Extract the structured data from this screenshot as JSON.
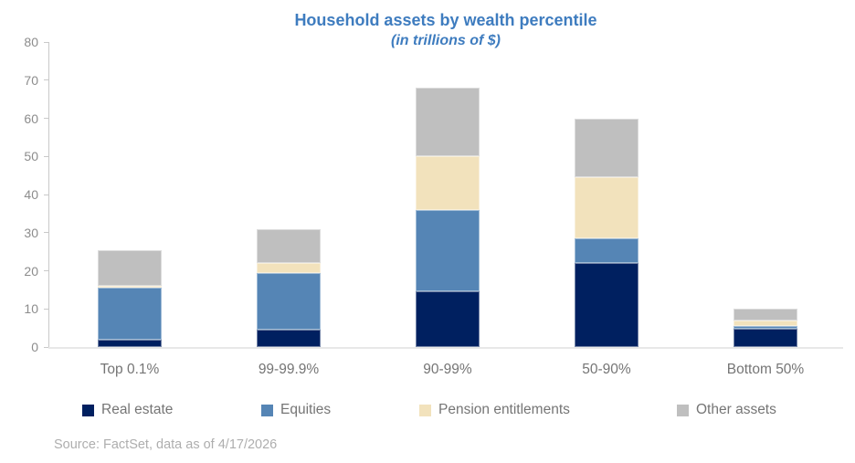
{
  "title": "Household assets by wealth percentile",
  "subtitle": "(in trillions of $)",
  "source": "Source: FactSet, data as of 4/17/2026",
  "colors": {
    "title_text": "#3e7cbf",
    "axis_text": "#8c8c8c",
    "category_text": "#757575",
    "source_text": "#aeaeae",
    "axis_line": "#c9c9c9",
    "baseline": "#e8e8e8"
  },
  "chart_data": {
    "type": "bar",
    "stacked": true,
    "title": "Household assets by wealth percentile",
    "subtitle": "(in trillions of $)",
    "xlabel": "",
    "ylabel": "",
    "ylim": [
      0,
      80
    ],
    "y_ticks": [
      0,
      10,
      20,
      30,
      40,
      50,
      60,
      70,
      80
    ],
    "grid": false,
    "legend_position": "bottom",
    "categories": [
      "Top 0.1%",
      "99-99.9%",
      "90-99%",
      "50-90%",
      "Bottom 50%"
    ],
    "series": [
      {
        "name": "Real estate",
        "color": "#002060",
        "values": [
          2.0,
          4.5,
          14.5,
          22.0,
          4.8
        ]
      },
      {
        "name": "Equities",
        "color": "#5585b5",
        "values": [
          13.5,
          15.0,
          21.5,
          6.5,
          0.7
        ]
      },
      {
        "name": "Pension entitlements",
        "color": "#f2e2bc",
        "values": [
          0.5,
          2.5,
          14.0,
          16.0,
          1.5
        ]
      },
      {
        "name": "Other assets",
        "color": "#bfbfbf",
        "values": [
          9.5,
          9.0,
          18.0,
          15.5,
          3.0
        ]
      }
    ],
    "stack_totals": [
      25.5,
      31.0,
      68.0,
      60.0,
      10.0
    ]
  }
}
